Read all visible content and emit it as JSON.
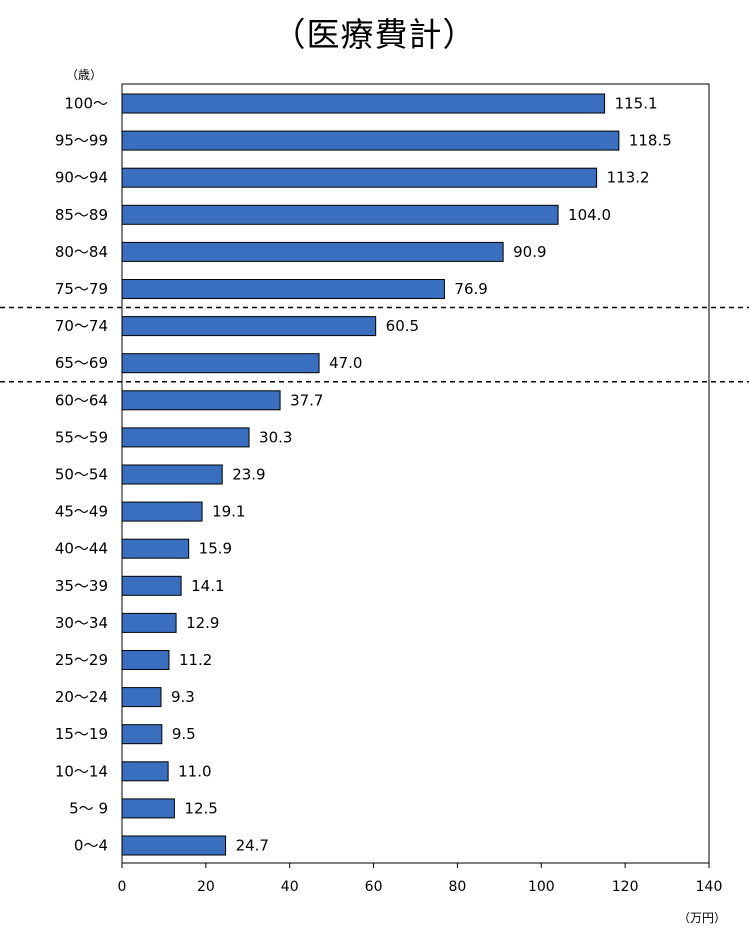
{
  "chart_data": {
    "type": "bar",
    "orientation": "horizontal",
    "title": "（医療費計）",
    "y_unit": "（歳）",
    "x_unit": "（万円）",
    "categories": [
      "100～",
      "95～99",
      "90～94",
      "85～89",
      "80～84",
      "75～79",
      "70～74",
      "65～69",
      "60～64",
      "55～59",
      "50～54",
      "45～49",
      "40～44",
      "35～39",
      "30～34",
      "25～29",
      "20～24",
      "15～19",
      "10～14",
      "5～ 9",
      "0～4"
    ],
    "values": [
      115.1,
      118.5,
      113.2,
      104.0,
      90.9,
      76.9,
      60.5,
      47.0,
      37.7,
      30.3,
      23.9,
      19.1,
      15.9,
      14.1,
      12.9,
      11.2,
      9.3,
      9.5,
      11.0,
      12.5,
      24.7
    ],
    "value_labels": [
      "115.1",
      "118.5",
      "113.2",
      "104.0",
      "90.9",
      "76.9",
      "60.5",
      "47.0",
      "37.7",
      "30.3",
      "23.9",
      "19.1",
      "15.9",
      "14.1",
      "12.9",
      "11.2",
      "9.3",
      "9.5",
      "11.0",
      "12.5",
      "24.7"
    ],
    "xlim": [
      0,
      140
    ],
    "xticks": [
      "0",
      "20",
      "40",
      "60",
      "80",
      "100",
      "120",
      "140"
    ],
    "dashed_separators_after_index": [
      5,
      7
    ],
    "grid": false,
    "legend": "none",
    "bar_color": "#3a6fbf",
    "bar_edge_color": "#000000"
  }
}
